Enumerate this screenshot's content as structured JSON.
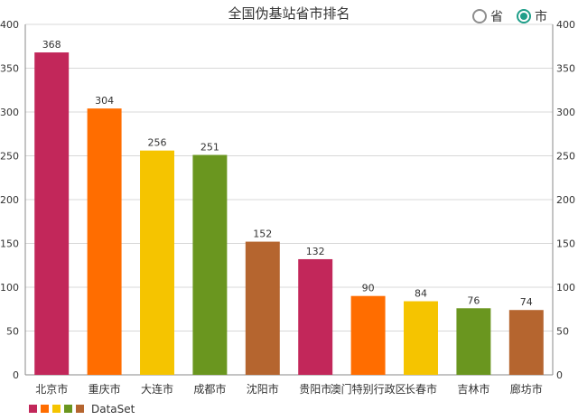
{
  "chart_data": {
    "type": "bar",
    "title": "全国伪基站省市排名",
    "categories": [
      "北京市",
      "重庆市",
      "大连市",
      "成都市",
      "沈阳市",
      "贵阳市",
      "澳门特别行政区",
      "长春市",
      "吉林市",
      "廊坊市"
    ],
    "series": [
      {
        "name": "DataSet",
        "values": [
          368,
          304,
          256,
          251,
          152,
          132,
          90,
          84,
          76,
          74
        ]
      }
    ],
    "colors": [
      "#c2275a",
      "#ff6d00",
      "#f5c400",
      "#6a961f",
      "#b5652f"
    ],
    "ylim": [
      0,
      400
    ],
    "yticks": [
      0,
      50,
      100,
      150,
      200,
      250,
      300,
      350,
      400
    ],
    "grid": true,
    "legend_position": "bottom-left",
    "show_value_labels": true
  },
  "toggle": {
    "options": [
      {
        "label": "省",
        "checked": false
      },
      {
        "label": "市",
        "checked": true
      }
    ]
  }
}
